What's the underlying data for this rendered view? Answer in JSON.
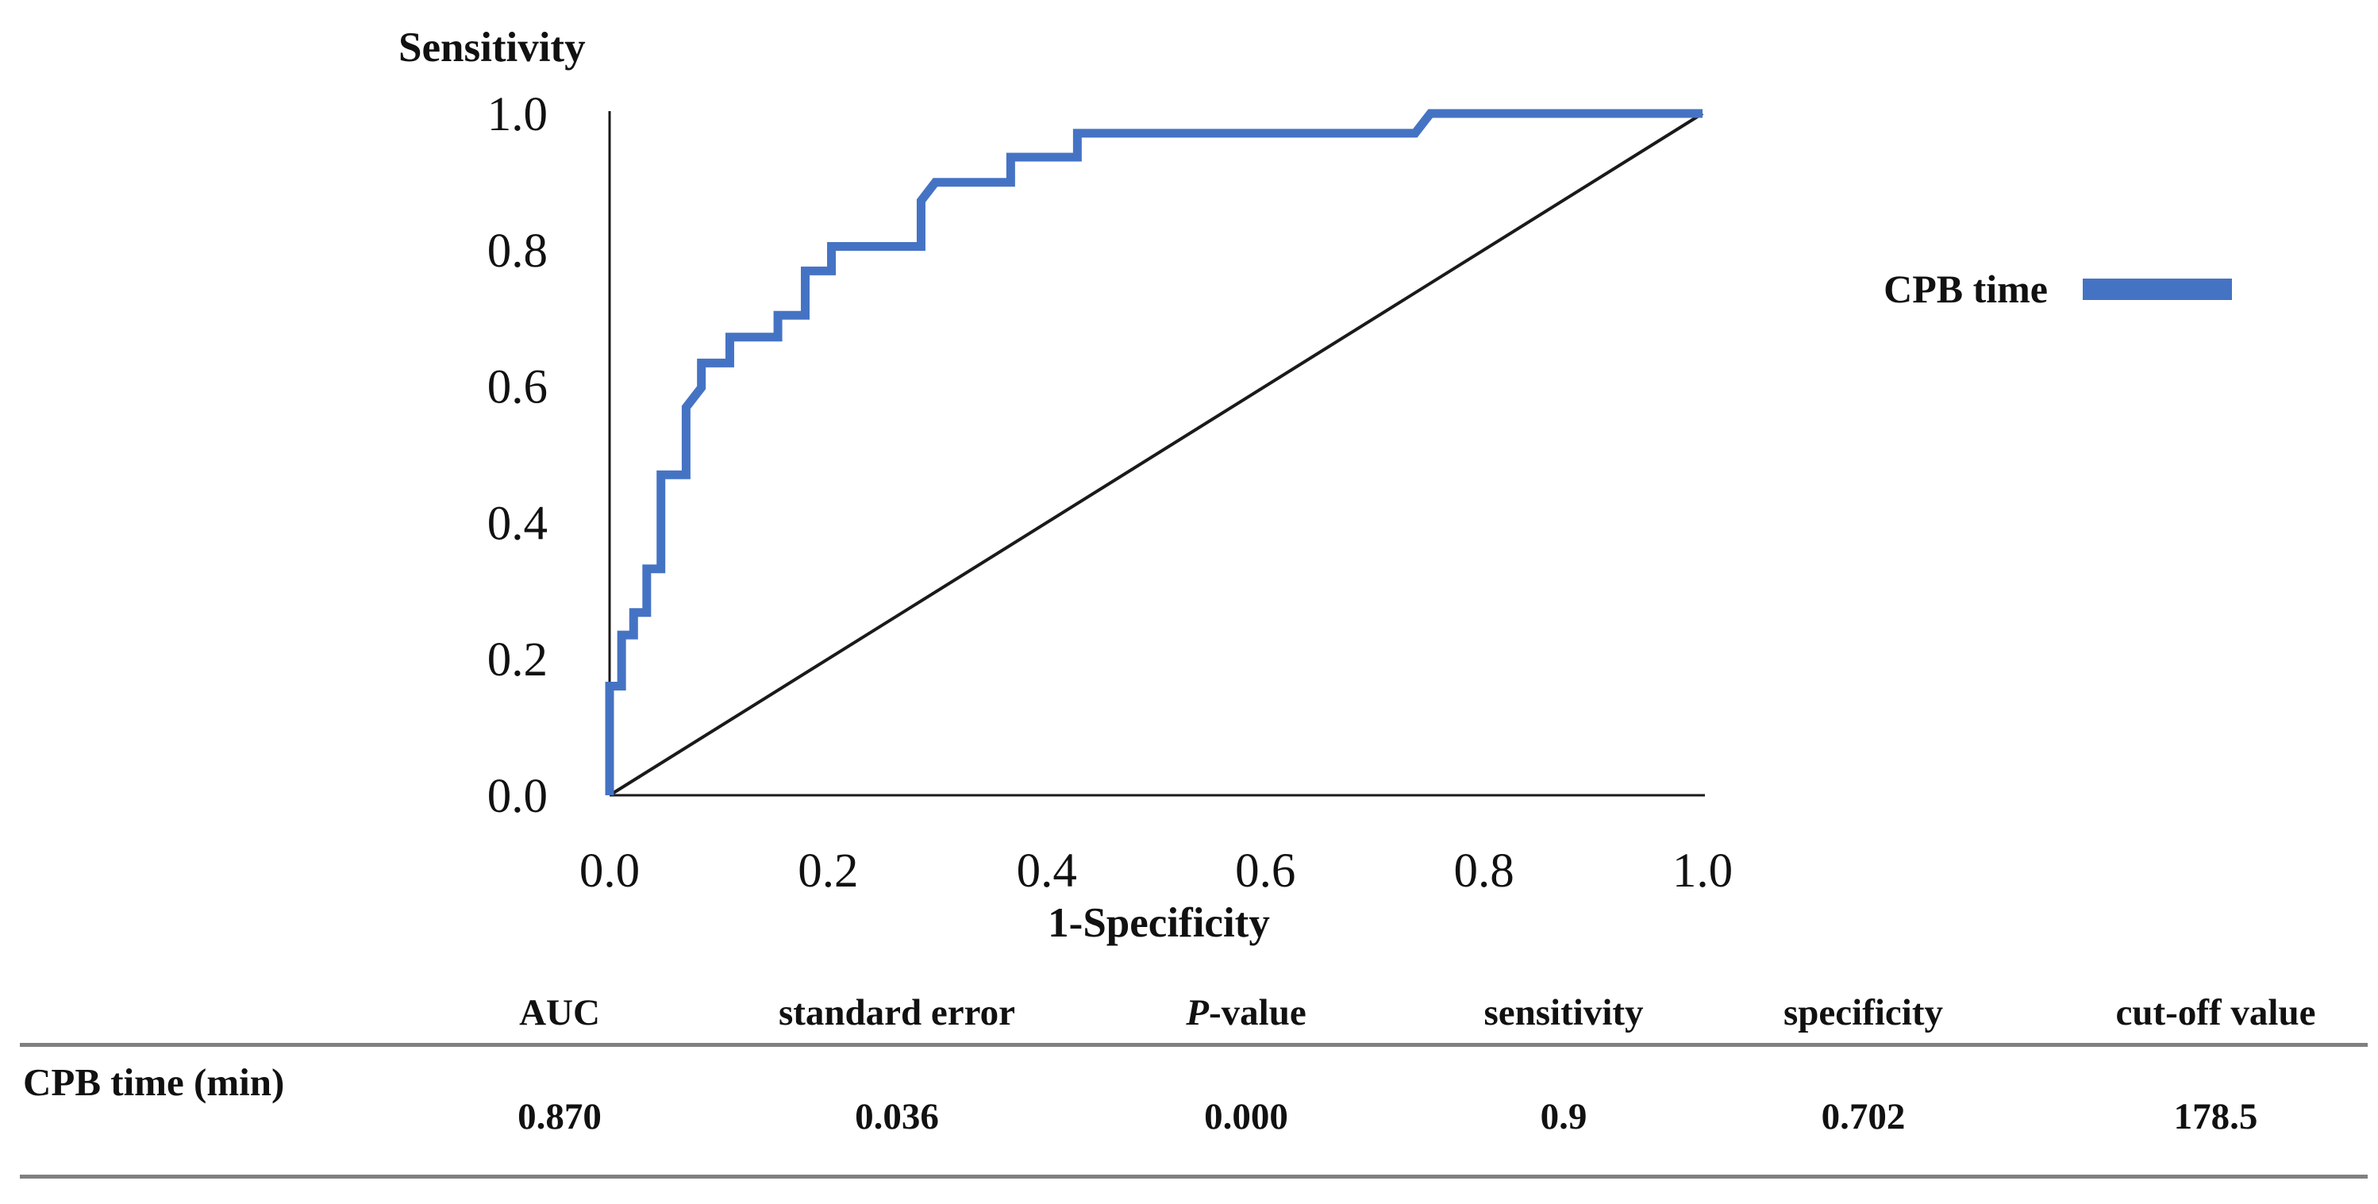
{
  "chart_data": {
    "type": "line",
    "title": "",
    "xlabel": "1-Specificity",
    "ylabel": "Sensitivity",
    "xlim": [
      0,
      1
    ],
    "ylim": [
      0,
      1
    ],
    "grid": false,
    "legend_position": "right",
    "x_ticks": [
      "0.0",
      "0.2",
      "0.4",
      "0.6",
      "0.8",
      "1.0"
    ],
    "y_ticks": [
      "0.0",
      "0.2",
      "0.4",
      "0.6",
      "0.8",
      "1.0"
    ],
    "series": [
      {
        "name": "CPB time",
        "color": "#4573C4",
        "stroke_width": 11,
        "points": [
          [
            0,
            0
          ],
          [
            0,
            0.16
          ],
          [
            0.011,
            0.16
          ],
          [
            0.011,
            0.235
          ],
          [
            0.022,
            0.235
          ],
          [
            0.022,
            0.268
          ],
          [
            0.034,
            0.268
          ],
          [
            0.034,
            0.332
          ],
          [
            0.047,
            0.332
          ],
          [
            0.047,
            0.47
          ],
          [
            0.07,
            0.47
          ],
          [
            0.07,
            0.569
          ],
          [
            0.084,
            0.598
          ],
          [
            0.084,
            0.634
          ],
          [
            0.11,
            0.634
          ],
          [
            0.11,
            0.672
          ],
          [
            0.154,
            0.672
          ],
          [
            0.154,
            0.704
          ],
          [
            0.179,
            0.704
          ],
          [
            0.179,
            0.769
          ],
          [
            0.203,
            0.769
          ],
          [
            0.203,
            0.805
          ],
          [
            0.285,
            0.805
          ],
          [
            0.285,
            0.872
          ],
          [
            0.298,
            0.899
          ],
          [
            0.367,
            0.899
          ],
          [
            0.367,
            0.936
          ],
          [
            0.428,
            0.936
          ],
          [
            0.428,
            0.971
          ],
          [
            0.737,
            0.971
          ],
          [
            0.751,
            1
          ],
          [
            1,
            1
          ]
        ]
      },
      {
        "name": "reference diagonal",
        "color": "#1a1a1a",
        "stroke_width": 4,
        "points": [
          [
            0,
            0
          ],
          [
            1,
            1
          ]
        ]
      }
    ]
  },
  "table": {
    "columns": [
      "",
      "AUC",
      "standard error",
      "P-value",
      "sensitivity",
      "specificity",
      "cut-off value"
    ],
    "p_italic": "P",
    "p_rest": "-value",
    "rows": [
      {
        "label": "CPB time (min)",
        "values": [
          "0.870",
          "0.036",
          "0.000",
          "0.9",
          "0.702",
          "178.5"
        ]
      }
    ]
  },
  "colors": {
    "curve": "#4573C4",
    "reference_line": "#1a1a1a",
    "axis": "#1a1a1a",
    "table_rule": "#808080"
  }
}
